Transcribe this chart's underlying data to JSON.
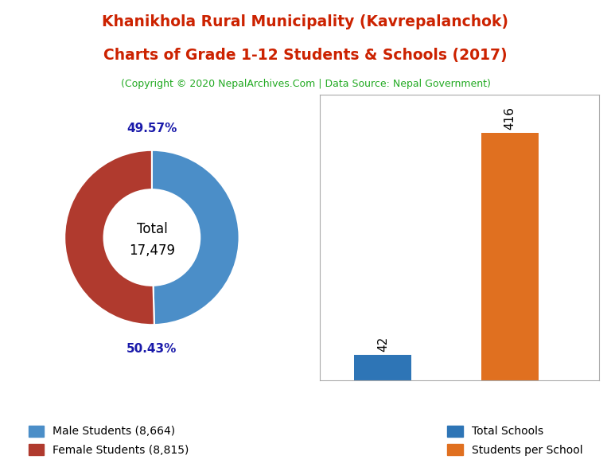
{
  "title_line1": "Khanikhola Rural Municipality (Kavrepalanchok)",
  "title_line2": "Charts of Grade 1-12 Students & Schools (2017)",
  "subtitle": "(Copyright © 2020 NepalArchives.Com | Data Source: Nepal Government)",
  "title_color": "#cc2200",
  "subtitle_color": "#22aa22",
  "male_students": 8664,
  "female_students": 8815,
  "total_students": 17479,
  "male_pct": "49.57%",
  "female_pct": "50.43%",
  "male_color": "#4b8ec8",
  "female_color": "#b03a2e",
  "pct_color": "#1a1aaa",
  "total_schools": 42,
  "students_per_school": 416,
  "bar_blue": "#2e75b6",
  "bar_orange": "#e07020",
  "legend_male": "Male Students (8,664)",
  "legend_female": "Female Students (8,815)",
  "legend_schools": "Total Schools",
  "legend_students_per_school": "Students per School",
  "background_color": "#ffffff"
}
